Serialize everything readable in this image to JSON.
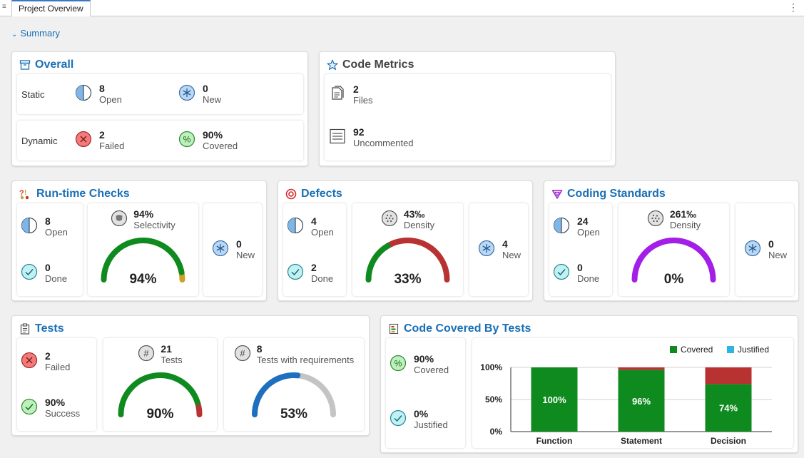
{
  "tab": {
    "label": "Project Overview"
  },
  "summary": {
    "label": "Summary"
  },
  "overall": {
    "title": "Overall",
    "static_label": "Static",
    "dynamic_label": "Dynamic",
    "static_open": {
      "value": "8",
      "label": "Open"
    },
    "static_new": {
      "value": "0",
      "label": "New"
    },
    "dynamic_failed": {
      "value": "2",
      "label": "Failed"
    },
    "dynamic_covered": {
      "value": "90%",
      "label": "Covered"
    }
  },
  "code_metrics": {
    "title": "Code Metrics",
    "files": {
      "value": "2",
      "label": "Files"
    },
    "uncommented": {
      "value": "92",
      "label": "Uncommented"
    }
  },
  "runtime": {
    "title": "Run-time Checks",
    "open": {
      "value": "8",
      "label": "Open"
    },
    "done": {
      "value": "0",
      "label": "Done"
    },
    "selectivity": {
      "value": "94%",
      "label": "Selectivity",
      "center": "94%"
    },
    "new": {
      "value": "0",
      "label": "New"
    },
    "gauge_fraction": 0.94,
    "colors": {
      "main": "#0f8a1e",
      "rest": "#c9a227"
    }
  },
  "defects": {
    "title": "Defects",
    "open": {
      "value": "4",
      "label": "Open"
    },
    "done": {
      "value": "2",
      "label": "Done"
    },
    "density": {
      "value": "43‰",
      "label": "Density",
      "center": "33%"
    },
    "new": {
      "value": "4",
      "label": "New"
    },
    "gauge_fraction": 0.33,
    "colors": {
      "main": "#0f8a1e",
      "rest": "#b83232"
    }
  },
  "coding_standards": {
    "title": "Coding Standards",
    "open": {
      "value": "24",
      "label": "Open"
    },
    "done": {
      "value": "0",
      "label": "Done"
    },
    "density": {
      "value": "261‰",
      "label": "Density",
      "center": "0%"
    },
    "new": {
      "value": "0",
      "label": "New"
    },
    "gauge_fraction": 0.0,
    "colors": {
      "main": "#0f8a1e",
      "rest": "#a31ee6"
    }
  },
  "tests": {
    "title": "Tests",
    "failed": {
      "value": "2",
      "label": "Failed"
    },
    "success": {
      "value": "90%",
      "label": "Success"
    },
    "tests_count": {
      "value": "21",
      "label": "Tests",
      "center": "90%"
    },
    "with_req": {
      "value": "8",
      "label": "Tests with requirements",
      "center": "53%"
    },
    "gauge1_fraction": 0.9,
    "gauge2_fraction": 0.53,
    "colors": {
      "g1_main": "#0f8a1e",
      "g1_rest": "#b83232",
      "g2_main": "#1e6fc0",
      "g2_rest": "#c4c4c4"
    }
  },
  "code_covered": {
    "title": "Code Covered By Tests",
    "covered": {
      "value": "90%",
      "label": "Covered"
    },
    "justified": {
      "value": "0%",
      "label": "Justified"
    }
  },
  "chart_data": {
    "type": "bar",
    "categories": [
      "Function",
      "Statement",
      "Decision"
    ],
    "series": [
      {
        "name": "Covered",
        "values": [
          100,
          96,
          74
        ],
        "color": "#0f8a1e"
      },
      {
        "name": "Justified",
        "values": [
          0,
          0,
          0
        ],
        "color": "#2bb5e0"
      }
    ],
    "uncovered_color": "#b83232",
    "data_labels": [
      "100%",
      "96%",
      "74%"
    ],
    "yticks": [
      "0%",
      "50%",
      "100%"
    ],
    "ylim": [
      0,
      100
    ],
    "legend": "top-right"
  }
}
